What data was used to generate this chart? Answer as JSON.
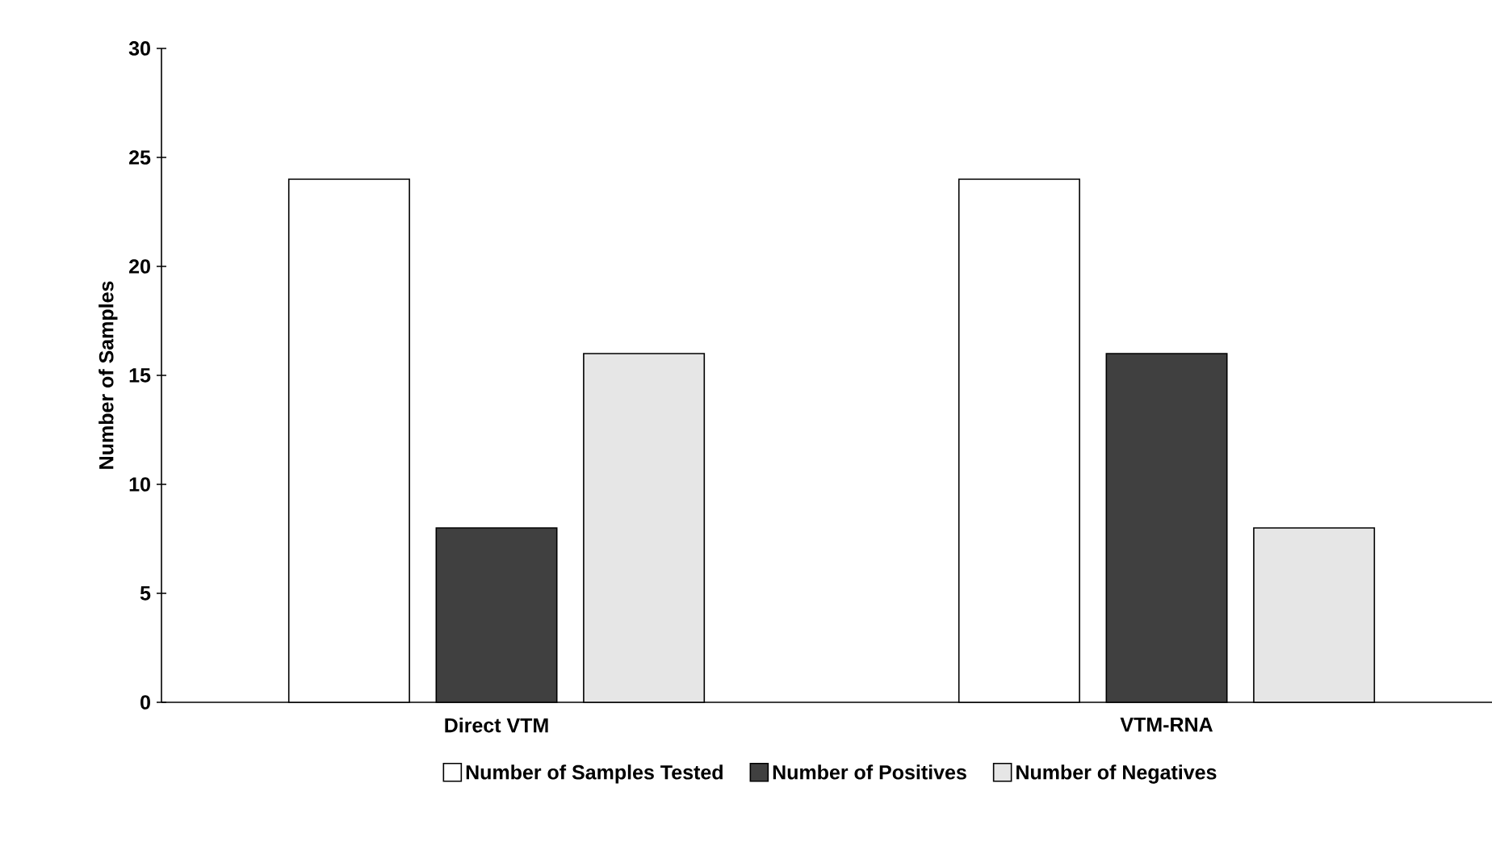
{
  "chart_data": {
    "type": "bar",
    "ylabel": "Number of Samples",
    "categories": [
      "Direct VTM",
      "VTM-RNA"
    ],
    "series": [
      {
        "name": "Number of Samples Tested",
        "color": "#ffffff",
        "values": [
          24,
          24
        ]
      },
      {
        "name": "Number of Positives",
        "color": "#404040",
        "values": [
          8,
          16
        ]
      },
      {
        "name": "Number of Negatives",
        "color": "#e6e6e6",
        "values": [
          16,
          8
        ]
      }
    ],
    "ylim": [
      0,
      30
    ],
    "yticks": [
      0,
      5,
      10,
      15,
      20,
      25,
      30
    ],
    "legend": "bottom",
    "grid": false
  }
}
